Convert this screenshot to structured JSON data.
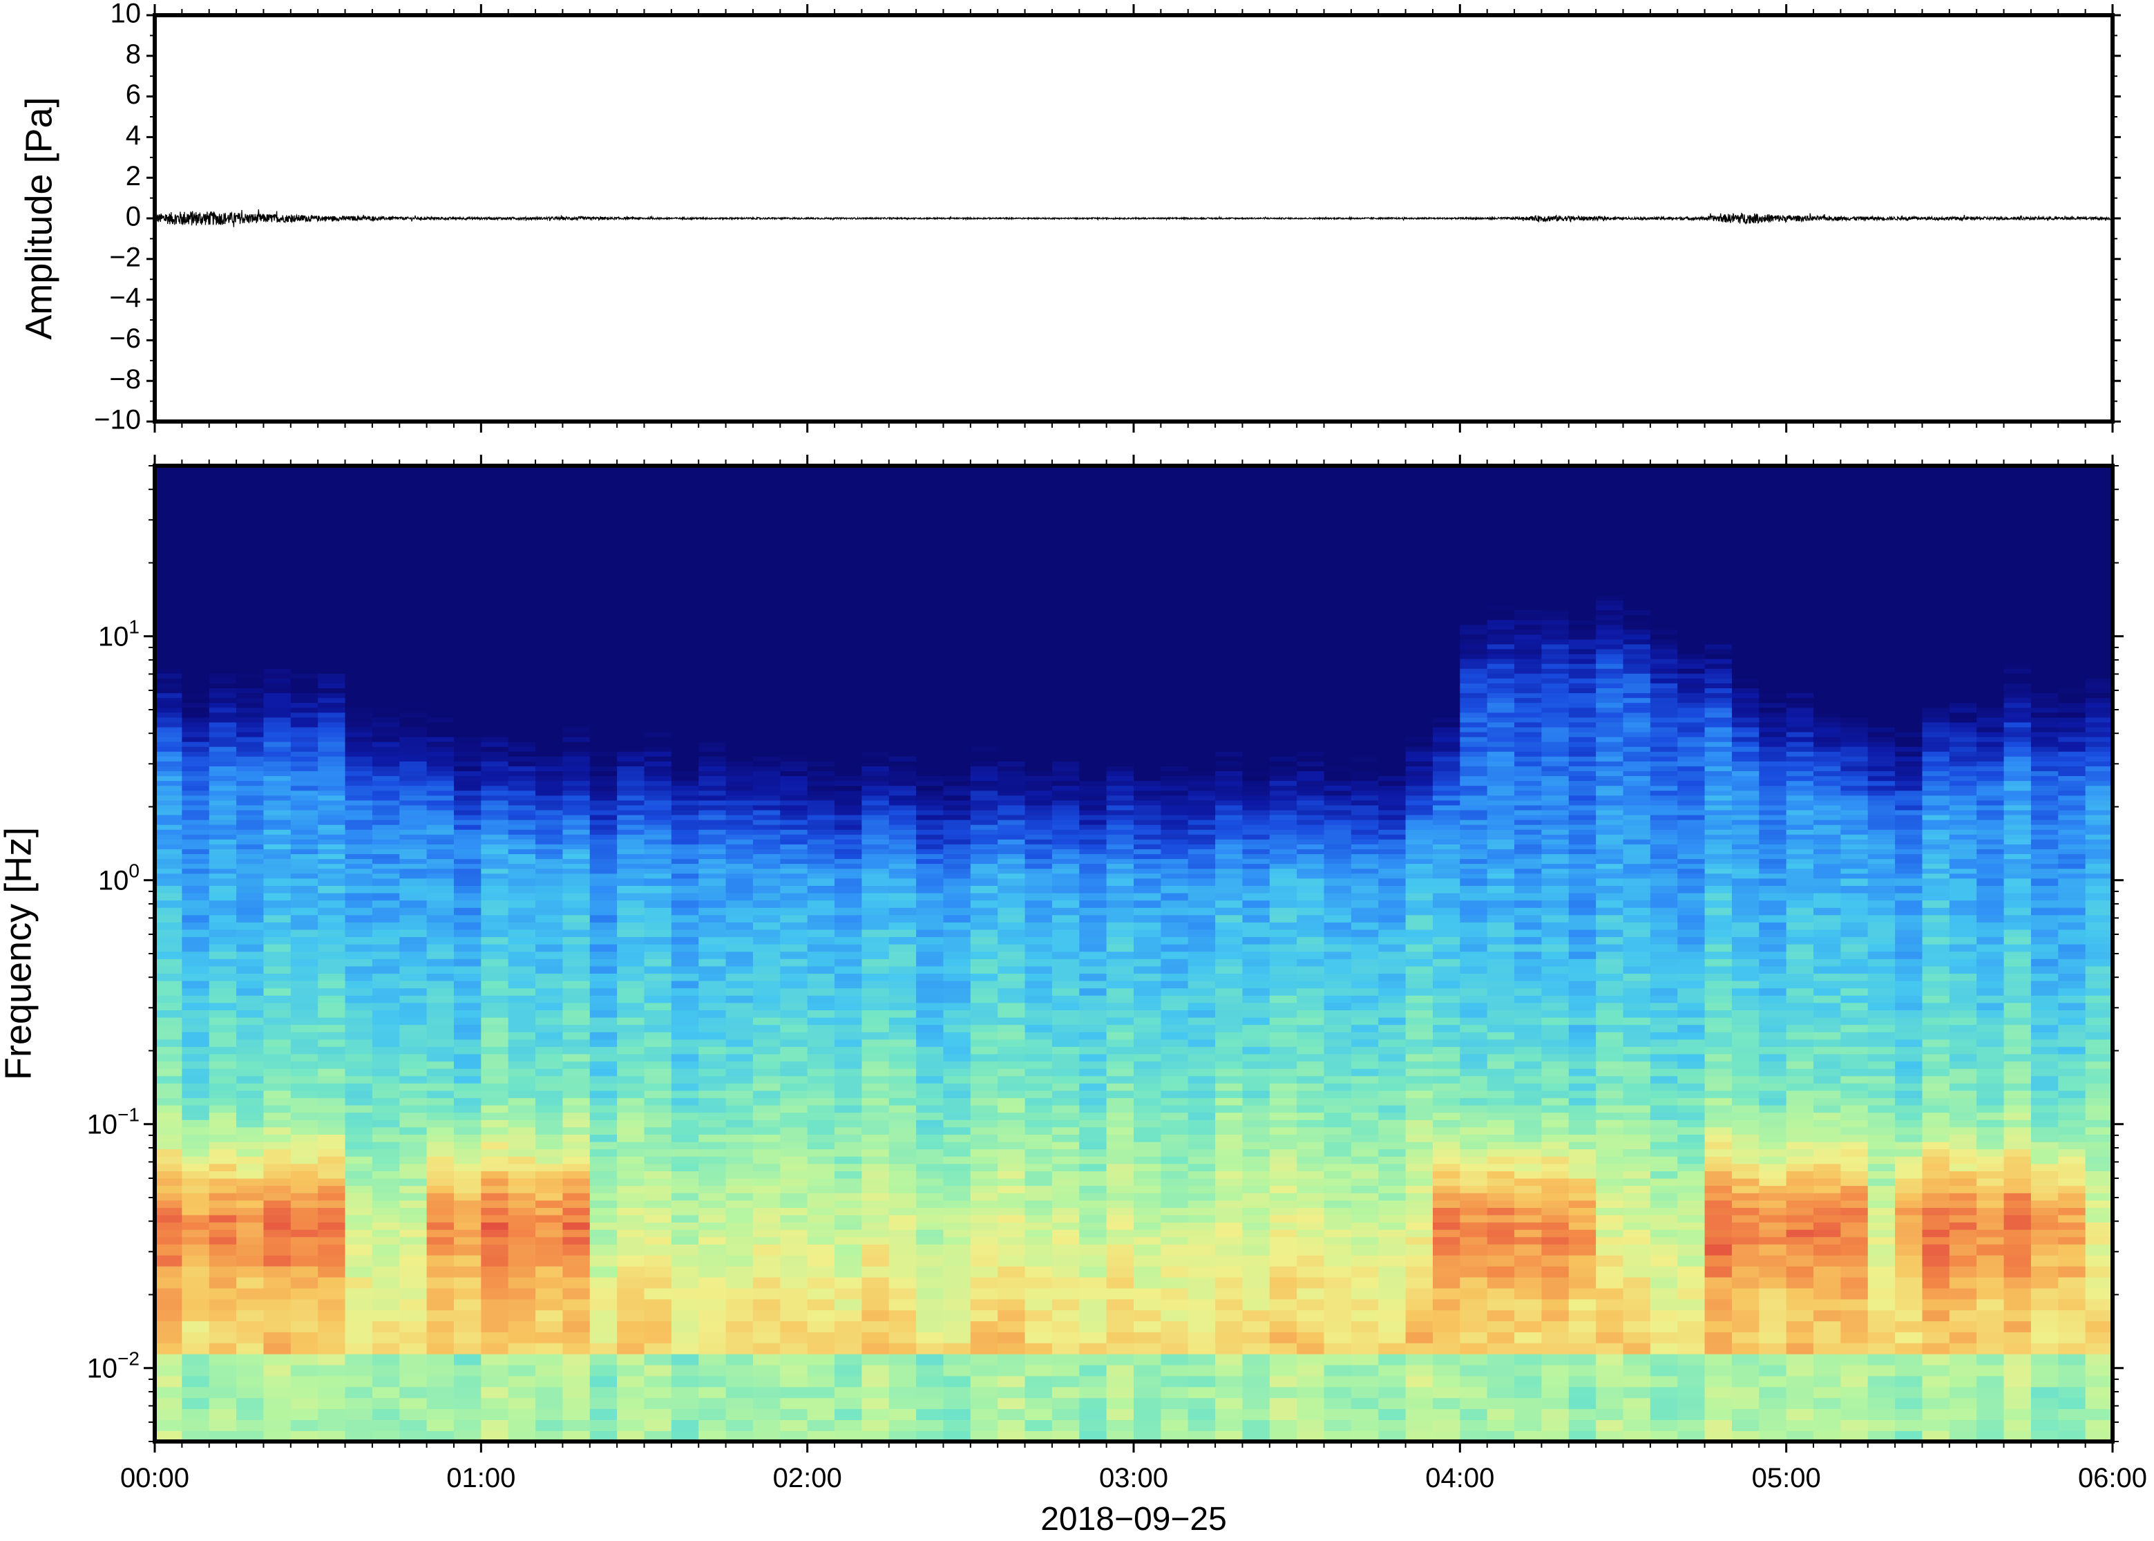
{
  "chart_data": [
    {
      "type": "line",
      "ylabel": "Amplitude [Pa]",
      "ylim": [
        -10,
        10
      ],
      "yticks": [
        10,
        8,
        6,
        4,
        2,
        0,
        -2,
        -4,
        -6,
        -8,
        -10
      ],
      "ytick_labels": [
        "10",
        "8",
        "6",
        "4",
        "2",
        "0",
        "−2",
        "−4",
        "−6",
        "−8",
        "−10"
      ],
      "xlim_hours": [
        0,
        6
      ],
      "series": [
        {
          "color": "#000000",
          "envelope_hours": [
            0,
            0.1,
            0.2,
            0.3,
            0.4,
            0.5,
            0.6,
            0.8,
            1.0,
            1.2,
            1.3,
            1.5,
            2.0,
            2.5,
            3.0,
            3.5,
            4.0,
            4.2,
            4.25,
            4.5,
            4.75,
            4.85,
            4.9,
            5.0,
            5.1,
            5.3,
            5.5,
            5.7,
            6.0
          ],
          "envelope_pa": [
            0.4,
            0.7,
            0.6,
            0.45,
            0.35,
            0.25,
            0.2,
            0.12,
            0.1,
            0.12,
            0.15,
            0.08,
            0.07,
            0.06,
            0.06,
            0.06,
            0.07,
            0.12,
            0.3,
            0.1,
            0.15,
            0.5,
            0.45,
            0.3,
            0.2,
            0.15,
            0.15,
            0.12,
            0.12
          ]
        }
      ]
    },
    {
      "type": "heatmap",
      "ylabel": "Frequency [Hz]",
      "xlabel": "2018−09−25",
      "yscale": "log",
      "ylim_hz": [
        0.005,
        50
      ],
      "yticks_major": [
        {
          "value": 0.01,
          "base": "10",
          "exp": "−2"
        },
        {
          "value": 0.1,
          "base": "10",
          "exp": "−1"
        },
        {
          "value": 1,
          "base": "10",
          "exp": "0"
        },
        {
          "value": 10,
          "base": "10",
          "exp": "1"
        }
      ],
      "xlim_hours": [
        0,
        6
      ],
      "xticks": [
        {
          "hours": 0,
          "label": "00:00"
        },
        {
          "hours": 1,
          "label": "01:00"
        },
        {
          "hours": 2,
          "label": "02:00"
        },
        {
          "hours": 3,
          "label": "03:00"
        },
        {
          "hours": 4,
          "label": "04:00"
        },
        {
          "hours": 5,
          "label": "05:00"
        },
        {
          "hours": 6,
          "label": "06:00"
        }
      ],
      "colormap": [
        "#0a0a75",
        "#0d1aa6",
        "#1a4fe0",
        "#2f8ef5",
        "#45c6f0",
        "#74e6c5",
        "#b7f5a0",
        "#f0f08a",
        "#f7c560",
        "#f38a48",
        "#e2463f"
      ],
      "hot_regions": [
        {
          "hours": [
            0.0,
            0.55
          ],
          "freq_hz": [
            0.012,
            0.12
          ]
        },
        {
          "hours": [
            0.85,
            1.35
          ],
          "freq_hz": [
            0.02,
            0.07
          ]
        },
        {
          "hours": [
            3.9,
            4.45
          ],
          "freq_hz": [
            0.02,
            0.07
          ]
        },
        {
          "hours": [
            4.75,
            5.25
          ],
          "freq_hz": [
            0.012,
            0.1
          ]
        },
        {
          "hours": [
            5.3,
            5.95
          ],
          "freq_hz": [
            0.02,
            0.08
          ]
        }
      ],
      "energy_upper_edge_hz": {
        "hours": [
          0,
          0.55,
          0.6,
          0.9,
          1.0,
          1.7,
          2.0,
          3.0,
          3.8,
          3.95,
          4.05,
          4.45,
          4.8,
          4.9,
          5.3,
          5.6,
          5.8,
          6.0
        ],
        "freq_hz": [
          11,
          11,
          8,
          7,
          5,
          5,
          4,
          4,
          4,
          5,
          25,
          30,
          15,
          10,
          6,
          9,
          11,
          9
        ]
      }
    }
  ]
}
